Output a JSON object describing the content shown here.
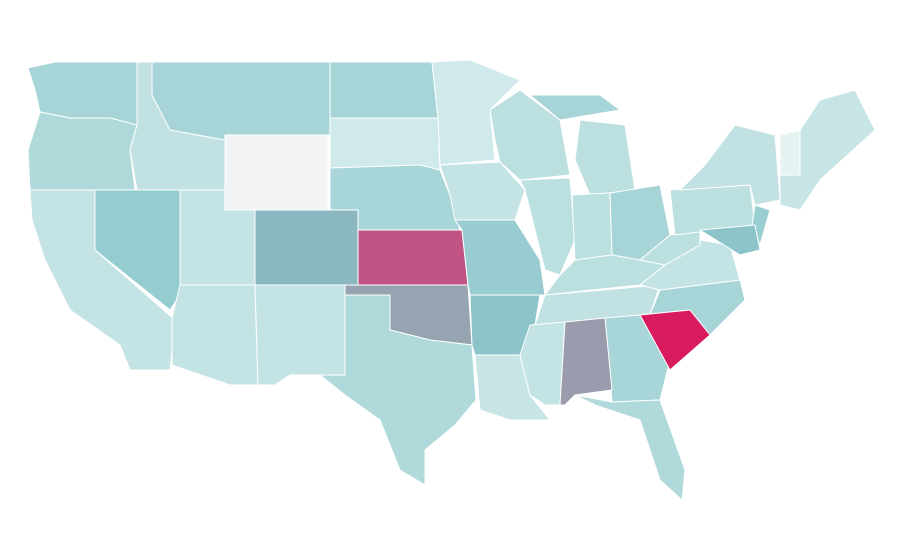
{
  "map": {
    "regions": [
      {
        "color": "#a6d4d7"
      },
      {
        "color": "#b0d9db"
      },
      {
        "color": "#c4e3e4"
      },
      {
        "color": "#93cdcf"
      },
      {
        "color": "#c1e1e2"
      },
      {
        "color": "#a6d4d7"
      },
      {
        "color": "#f2f3f5"
      },
      {
        "color": "#c4e3e4"
      },
      {
        "color": "#c4e3e4"
      },
      {
        "color": "#8bb8c0"
      },
      {
        "color": "#c4e3e4"
      },
      {
        "color": "#a6d4d7"
      },
      {
        "color": "#d0eaeb"
      },
      {
        "color": "#a8d5d8"
      },
      {
        "color": "#c05484"
      },
      {
        "color": "#96a4b2"
      },
      {
        "color": "#b0d9db"
      },
      {
        "color": "#d0eaeb"
      },
      {
        "color": "#c4e3e4"
      },
      {
        "color": "#99ccd0"
      },
      {
        "color": "#8cc4c9"
      },
      {
        "color": "#c8e5e6"
      },
      {
        "color": "#bcdfe0"
      },
      {
        "color": "#bcdfe0"
      },
      {
        "color": "#bcdfe0"
      },
      {
        "color": "#bcdfe0"
      },
      {
        "color": "#a6d4d7"
      },
      {
        "color": "#bcdfe0"
      },
      {
        "color": "#c1e1e2"
      },
      {
        "color": "#c4e3e4"
      },
      {
        "color": "#a8d5d8"
      },
      {
        "color": "#9a9cad"
      },
      {
        "color": "#b0d9db"
      },
      {
        "color": "#a6d4d7"
      },
      {
        "color": "#d81b5e"
      },
      {
        "color": "#c4e3e4"
      },
      {
        "color": "#bcdfe0"
      },
      {
        "color": "#bcdfe0"
      },
      {
        "color": "#c1e1e2"
      },
      {
        "color": "#a6d4d7"
      },
      {
        "color": "#9acfd2"
      },
      {
        "color": "#8cc4c9"
      },
      {
        "color": "#c8e5e6"
      },
      {
        "color": "#e6f3f3"
      }
    ]
  }
}
